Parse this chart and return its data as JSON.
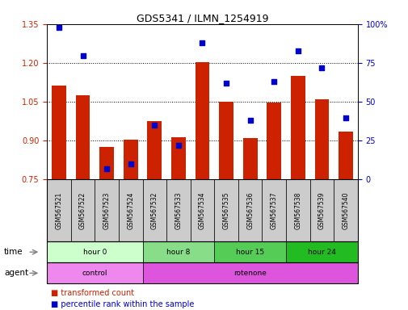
{
  "title": "GDS5341 / ILMN_1254919",
  "samples": [
    "GSM567521",
    "GSM567522",
    "GSM567523",
    "GSM567524",
    "GSM567532",
    "GSM567533",
    "GSM567534",
    "GSM567535",
    "GSM567536",
    "GSM567537",
    "GSM567538",
    "GSM567539",
    "GSM567540"
  ],
  "transformed_count": [
    1.115,
    1.075,
    0.875,
    0.905,
    0.975,
    0.915,
    1.205,
    1.05,
    0.91,
    1.048,
    1.15,
    1.06,
    0.935
  ],
  "percentile_rank": [
    98,
    80,
    7,
    10,
    35,
    22,
    88,
    62,
    38,
    63,
    83,
    72,
    40
  ],
  "ylim_left": [
    0.75,
    1.35
  ],
  "ylim_right": [
    0,
    100
  ],
  "yticks_left": [
    0.75,
    0.9,
    1.05,
    1.2,
    1.35
  ],
  "yticks_right": [
    0,
    25,
    50,
    75,
    100
  ],
  "bar_color": "#cc2200",
  "dot_color": "#0000cc",
  "bar_bottom": 0.75,
  "time_groups": [
    {
      "label": "hour 0",
      "start": 0,
      "end": 4,
      "color": "#ccffcc"
    },
    {
      "label": "hour 8",
      "start": 4,
      "end": 7,
      "color": "#88dd88"
    },
    {
      "label": "hour 15",
      "start": 7,
      "end": 10,
      "color": "#55cc55"
    },
    {
      "label": "hour 24",
      "start": 10,
      "end": 13,
      "color": "#22bb22"
    }
  ],
  "agent_groups": [
    {
      "label": "control",
      "start": 0,
      "end": 4,
      "color": "#ee88ee"
    },
    {
      "label": "rotenone",
      "start": 4,
      "end": 13,
      "color": "#dd55dd"
    }
  ],
  "time_row_label": "time",
  "agent_row_label": "agent",
  "legend_bar_label": "transformed count",
  "legend_dot_label": "percentile rank within the sample",
  "background_color": "#ffffff",
  "tick_label_color_left": "#cc2200",
  "tick_label_color_right": "#0000cc",
  "bar_width": 0.6,
  "sample_bg_color": "#cccccc"
}
